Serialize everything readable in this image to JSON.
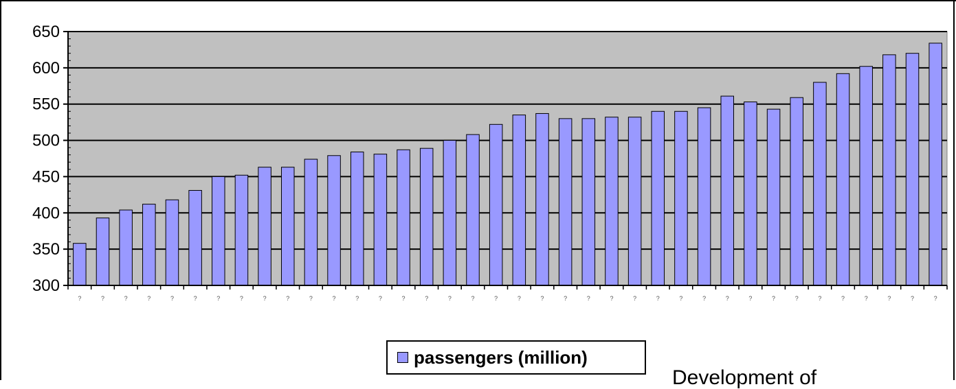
{
  "chart_data": {
    "type": "bar",
    "title": "",
    "xlabel": "",
    "ylabel": "",
    "ylim": [
      300,
      650
    ],
    "yticks": [
      300,
      350,
      400,
      450,
      500,
      550,
      600,
      650
    ],
    "grid": "horizontal",
    "plot_background": "#c0c0c0",
    "bar_color": "#9999ff",
    "legend_position": "bottom-center",
    "x_tick_glyph": "?",
    "series": [
      {
        "name": "passengers (million)",
        "values": [
          358,
          393,
          404,
          412,
          418,
          431,
          450,
          452,
          463,
          463,
          474,
          479,
          484,
          481,
          487,
          489,
          500,
          508,
          522,
          535,
          537,
          530,
          530,
          532,
          532,
          540,
          540,
          545,
          561,
          553,
          543,
          559,
          580,
          592,
          602,
          618,
          620,
          634
        ]
      }
    ]
  },
  "footer_text": "Development of"
}
